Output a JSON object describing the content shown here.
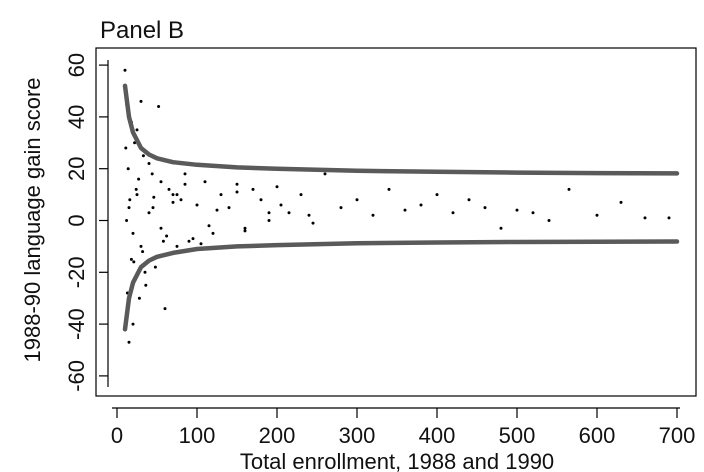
{
  "panel_title": "Panel B",
  "chart_data": {
    "type": "scatter",
    "title": "Panel B",
    "xlabel": "Total enrollment, 1988 and 1990",
    "ylabel": "1988-90 language gain score",
    "xlim": [
      0,
      710
    ],
    "ylim": [
      -68,
      67
    ],
    "xticks": [
      0,
      100,
      200,
      300,
      400,
      500,
      600,
      700
    ],
    "yticks": [
      60,
      40,
      20,
      0,
      -20,
      -40,
      -60
    ],
    "grid": false,
    "legend": "none",
    "colors": {
      "points": "#000000",
      "bounds": "#5a5a5a",
      "axes": "#000000"
    },
    "series": [
      {
        "kind": "points",
        "x": [
          10,
          12,
          15,
          18,
          20,
          22,
          25,
          28,
          30,
          33,
          36,
          40,
          44,
          48,
          52,
          55,
          60,
          65,
          70,
          75,
          80,
          85,
          90,
          100,
          110,
          120,
          130,
          140,
          150,
          160,
          170,
          180,
          190,
          200,
          215,
          230,
          245,
          260,
          280,
          300,
          320,
          340,
          360,
          380,
          400,
          420,
          440,
          460,
          480,
          500,
          520,
          540,
          565,
          600,
          630,
          660,
          690,
          12,
          15,
          20,
          25,
          30,
          40,
          55,
          70,
          95,
          125,
          160,
          205,
          14,
          18,
          24,
          32,
          46,
          62,
          85,
          115,
          150,
          190,
          240,
          11,
          13,
          16,
          21,
          27,
          35,
          45,
          58,
          75,
          105
        ],
        "y": [
          58,
          45,
          -47,
          38,
          -40,
          30,
          35,
          -30,
          46,
          25,
          -25,
          22,
          18,
          -18,
          44,
          15,
          -34,
          12,
          10,
          -10,
          8,
          18,
          -8,
          6,
          15,
          -5,
          10,
          5,
          14,
          -3,
          12,
          8,
          0,
          13,
          3,
          10,
          -1,
          18,
          5,
          8,
          2,
          12,
          4,
          6,
          10,
          3,
          8,
          5,
          -3,
          4,
          3,
          0,
          12,
          2,
          7,
          1,
          1,
          0,
          5,
          -5,
          10,
          -10,
          3,
          -3,
          7,
          -7,
          4,
          -4,
          6,
          20,
          -15,
          12,
          -12,
          9,
          -6,
          14,
          -2,
          11,
          3,
          2,
          28,
          -28,
          8,
          -16,
          16,
          -20,
          5,
          -8,
          10,
          -9
        ]
      },
      {
        "kind": "upper-bound",
        "x": [
          10,
          15,
          20,
          30,
          40,
          50,
          70,
          100,
          150,
          200,
          300,
          400,
          500,
          600,
          700
        ],
        "y": [
          52,
          40,
          34,
          28,
          25.5,
          24,
          22.5,
          21.5,
          20.5,
          20,
          19.2,
          18.8,
          18.5,
          18.3,
          18.2
        ]
      },
      {
        "kind": "lower-bound",
        "x": [
          10,
          15,
          20,
          30,
          40,
          50,
          70,
          100,
          150,
          200,
          300,
          400,
          500,
          600,
          700
        ],
        "y": [
          -42,
          -30,
          -24,
          -18,
          -15.5,
          -14,
          -12.5,
          -11,
          -10,
          -9.5,
          -8.8,
          -8.5,
          -8.3,
          -8.2,
          -8.1
        ]
      }
    ]
  }
}
